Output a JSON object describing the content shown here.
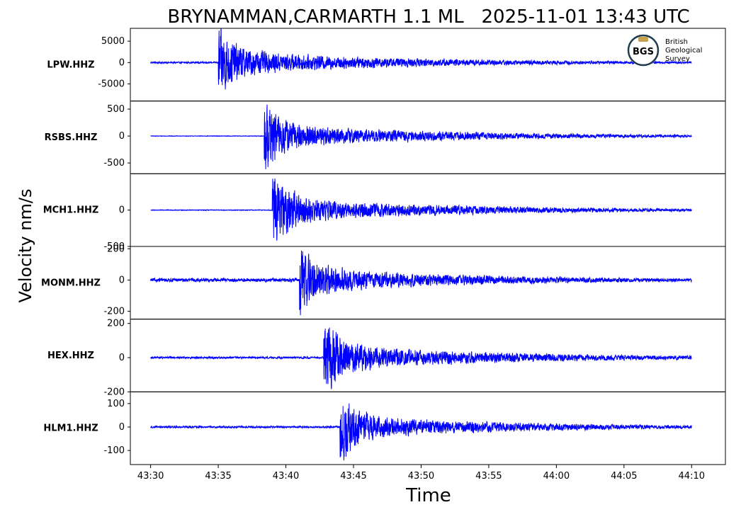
{
  "chart_data": {
    "type": "line",
    "title": "BRYNAMMAN,CARMARTH 1.1 ML   2025-11-01 13:43 UTC",
    "xlabel": "Time",
    "ylabel": "Velocity nm/s",
    "x_ticks": [
      "43:30",
      "43:35",
      "43:40",
      "43:45",
      "43:50",
      "43:55",
      "44:00",
      "44:05",
      "44:10"
    ],
    "x_tick_seconds": [
      0,
      5,
      10,
      15,
      20,
      25,
      30,
      35,
      40
    ],
    "xlim_seconds": [
      -1.5,
      42.5
    ],
    "series_color": "#0000ff",
    "traces": [
      {
        "name": "LPW.HHZ",
        "ylim": [
          -9000,
          8000
        ],
        "yticks": [
          5000,
          0,
          -5000
        ],
        "ytick_labels": [
          "5000",
          "0",
          "-5000"
        ],
        "onset_s": 5.0,
        "peak": 7500,
        "background": 220
      },
      {
        "name": "RSBS.HHZ",
        "ylim": [
          -700,
          650
        ],
        "yticks": [
          500,
          0,
          -500
        ],
        "ytick_labels": [
          "500",
          "0",
          "-500"
        ],
        "onset_s": 8.4,
        "peak": 580,
        "background": 6
      },
      {
        "name": "MCH1.HHZ",
        "ylim": [
          -500,
          500
        ],
        "yticks": [
          0,
          -500
        ],
        "ytick_labels": [
          "0",
          "-500"
        ],
        "onset_s": 9.0,
        "peak": 450,
        "background": 6
      },
      {
        "name": "MONM.HHZ",
        "ylim": [
          -250,
          215
        ],
        "yticks": [
          200,
          0,
          -200
        ],
        "ytick_labels": [
          "200",
          "0",
          "-200"
        ],
        "onset_s": 11.0,
        "peak": 205,
        "background": 14
      },
      {
        "name": "HEX.HHZ",
        "ylim": [
          -200,
          225
        ],
        "yticks": [
          200,
          0,
          -200
        ],
        "ytick_labels": [
          "200",
          "0",
          "-200"
        ],
        "onset_s": 12.8,
        "peak": 205,
        "background": 7
      },
      {
        "name": "HLM1.HHZ",
        "ylim": [
          -160,
          150
        ],
        "yticks": [
          100,
          0,
          -100
        ],
        "ytick_labels": [
          "100",
          "0",
          "-100"
        ],
        "onset_s": 14.0,
        "peak": 130,
        "background": 5
      }
    ]
  },
  "logo": {
    "abbrev": "BGS",
    "line1": "British",
    "line2": "Geological",
    "line3": "Survey",
    "ring_color": "#1f3b4d",
    "text_color": "#1f3b4d",
    "gold": "#c8a24a"
  }
}
